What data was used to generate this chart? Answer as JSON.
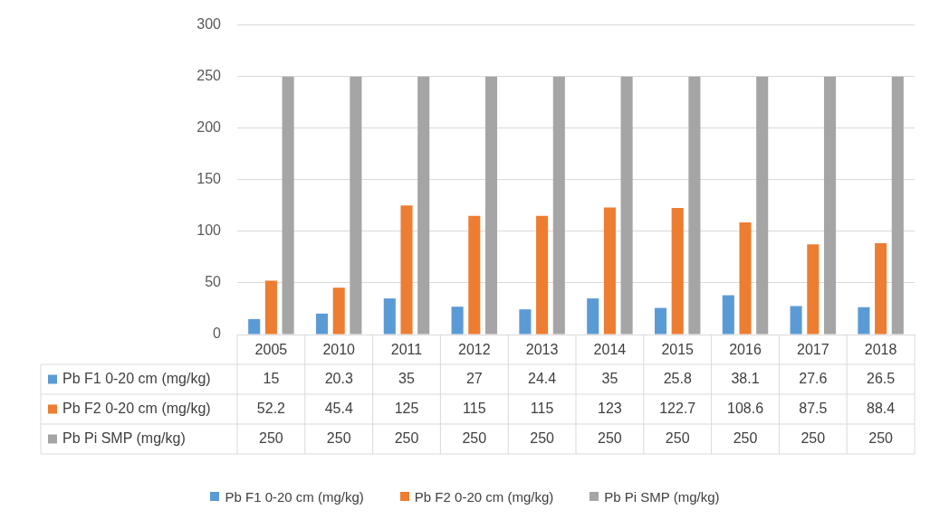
{
  "chart_data": {
    "type": "bar",
    "categories": [
      "2005",
      "2010",
      "2011",
      "2012",
      "2013",
      "2014",
      "2015",
      "2016",
      "2017",
      "2018"
    ],
    "series": [
      {
        "name": "Pb F1 0-20 cm (mg/kg)",
        "color": "#5b9bd5",
        "values": [
          15,
          20.3,
          35,
          27,
          24.4,
          35,
          25.8,
          38.1,
          27.6,
          26.5
        ]
      },
      {
        "name": "Pb F2 0-20 cm (mg/kg)",
        "color": "#ed7d31",
        "values": [
          52.2,
          45.4,
          125,
          115,
          115,
          123,
          122.7,
          108.6,
          87.5,
          88.4
        ]
      },
      {
        "name": "Pb Pi SMP (mg/kg)",
        "color": "#a5a5a5",
        "values": [
          250,
          250,
          250,
          250,
          250,
          250,
          250,
          250,
          250,
          250
        ]
      }
    ],
    "ylim": [
      0,
      300
    ],
    "yticks": [
      0,
      50,
      100,
      150,
      200,
      250,
      300
    ],
    "grid": "y",
    "legend": "bottom",
    "data_labels": true
  }
}
